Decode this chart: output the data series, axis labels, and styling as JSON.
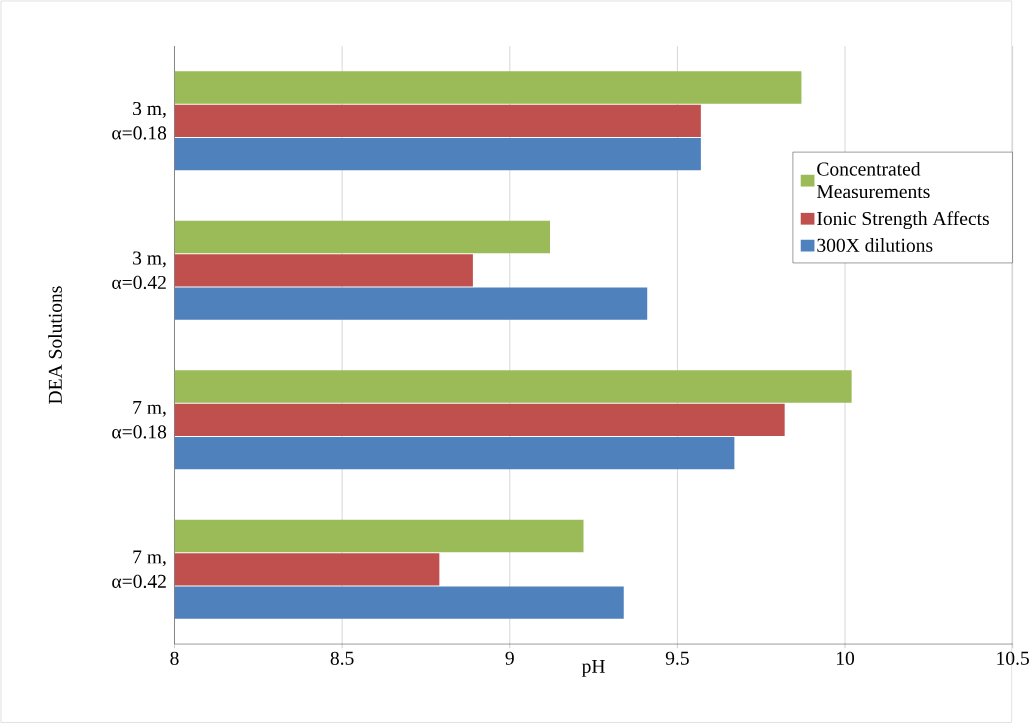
{
  "chart_data": {
    "type": "bar",
    "orientation": "horizontal",
    "xlabel": "pH",
    "ylabel": "DEA Solutions",
    "categories": [
      "3 m, α=0.18",
      "3 m, α=0.42",
      "7 m, α=0.18",
      "7 m, α=0.42"
    ],
    "series": [
      {
        "name": "Concentrated Measurements",
        "color": "#9bbb59",
        "values": [
          9.87,
          9.12,
          10.02,
          9.22
        ]
      },
      {
        "name": "Ionic Strength Affects",
        "color": "#c0504d",
        "values": [
          9.57,
          8.89,
          9.82,
          8.79
        ]
      },
      {
        "name": "300X dilutions",
        "color": "#4f81bd",
        "values": [
          9.57,
          9.41,
          9.67,
          9.34
        ]
      }
    ],
    "xlim": [
      8,
      10.5
    ],
    "xticks": [
      8,
      8.5,
      9,
      9.5,
      10,
      10.5
    ],
    "grid": "x",
    "legend": "right"
  }
}
